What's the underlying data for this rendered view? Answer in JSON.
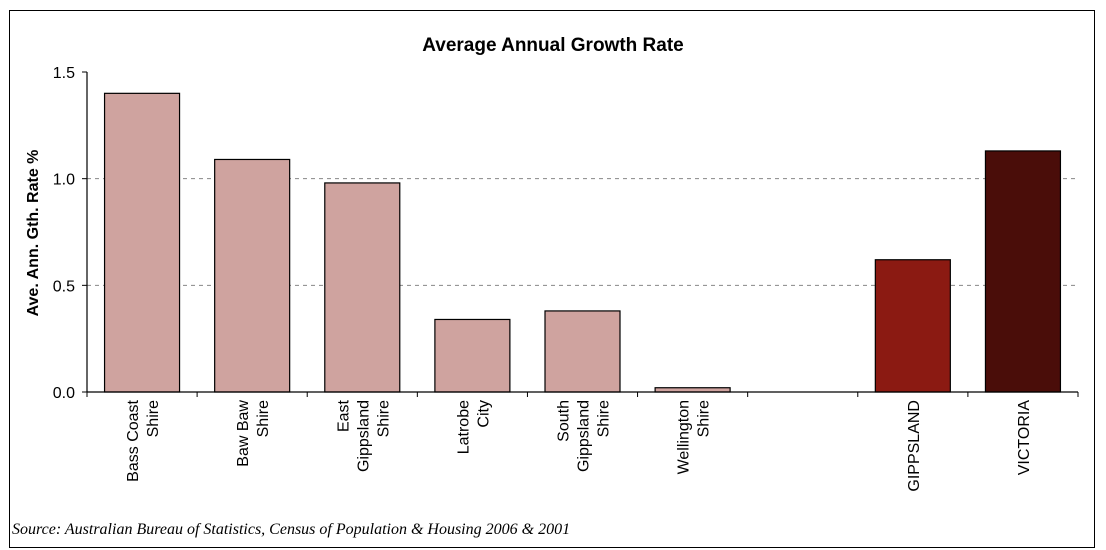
{
  "chart_data": {
    "type": "bar",
    "title": "Average Annual Growth Rate",
    "ylabel": "Ave. Ann. Gth. Rate %",
    "xlabel": "",
    "ylim": [
      0,
      1.5
    ],
    "yticks": [
      "0.0",
      "0.5",
      "1.0",
      "1.5"
    ],
    "grid": "horizontal dashed",
    "categories": [
      [
        "Bass Coast",
        "Shire"
      ],
      [
        "Baw Baw",
        "Shire"
      ],
      [
        "East",
        "Gippsland",
        "Shire"
      ],
      [
        "Latrobe",
        "City"
      ],
      [
        "South",
        "Gippsland",
        "Shire"
      ],
      [
        "Wellington",
        "Shire"
      ],
      [],
      [
        "GIPPSLAND"
      ],
      [
        "VICTORIA"
      ]
    ],
    "values": [
      1.4,
      1.09,
      0.98,
      0.34,
      0.38,
      0.02,
      null,
      0.62,
      1.13
    ],
    "colors": [
      "#cfa39f",
      "#cfa39f",
      "#cfa39f",
      "#cfa39f",
      "#cfa39f",
      "#cfa39f",
      null,
      "#8b1a12",
      "#4a0d09"
    ]
  },
  "source": "Source: Australian Bureau of Statistics, Census of Population & Housing 2006 & 2001"
}
